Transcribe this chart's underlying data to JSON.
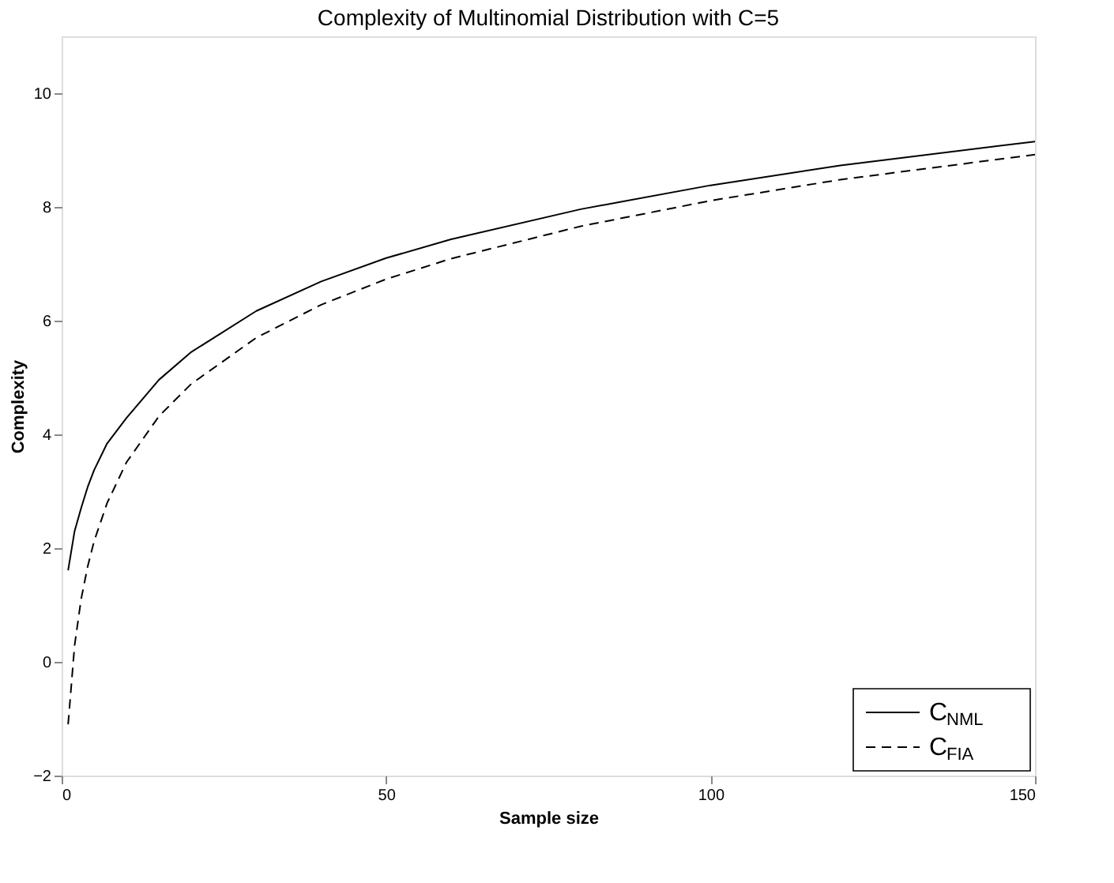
{
  "chart_data": {
    "type": "line",
    "title": "Complexity of Multinomial Distribution with C=5",
    "xlabel": "Sample size",
    "ylabel": "Complexity",
    "x": [
      1,
      2,
      3,
      4,
      5,
      7,
      10,
      15,
      20,
      30,
      40,
      50,
      60,
      80,
      100,
      120,
      150
    ],
    "series": [
      {
        "name": "C$_{NML}$",
        "color": "#000000",
        "line_style": "solid",
        "values": [
          1.61,
          2.3,
          2.7,
          3.07,
          3.37,
          3.84,
          4.29,
          4.96,
          5.45,
          6.17,
          6.69,
          7.1,
          7.43,
          7.96,
          8.38,
          8.73,
          9.15
        ]
      },
      {
        "name": "C$_{FIA}$",
        "color": "#000000",
        "line_style": "dashed",
        "values": [
          -1.1,
          0.29,
          1.1,
          1.67,
          2.12,
          2.79,
          3.51,
          4.32,
          4.89,
          5.7,
          6.28,
          6.73,
          7.09,
          7.66,
          8.11,
          8.48,
          8.92
        ]
      }
    ],
    "xlim": [
      0,
      150
    ],
    "xticks": [
      0,
      50,
      100,
      150
    ],
    "ylim": [
      -2,
      11
    ],
    "yticks": [
      -2,
      0,
      2,
      4,
      6,
      8,
      10
    ],
    "grid": false,
    "legend": "bottom right",
    "marker": "none"
  }
}
